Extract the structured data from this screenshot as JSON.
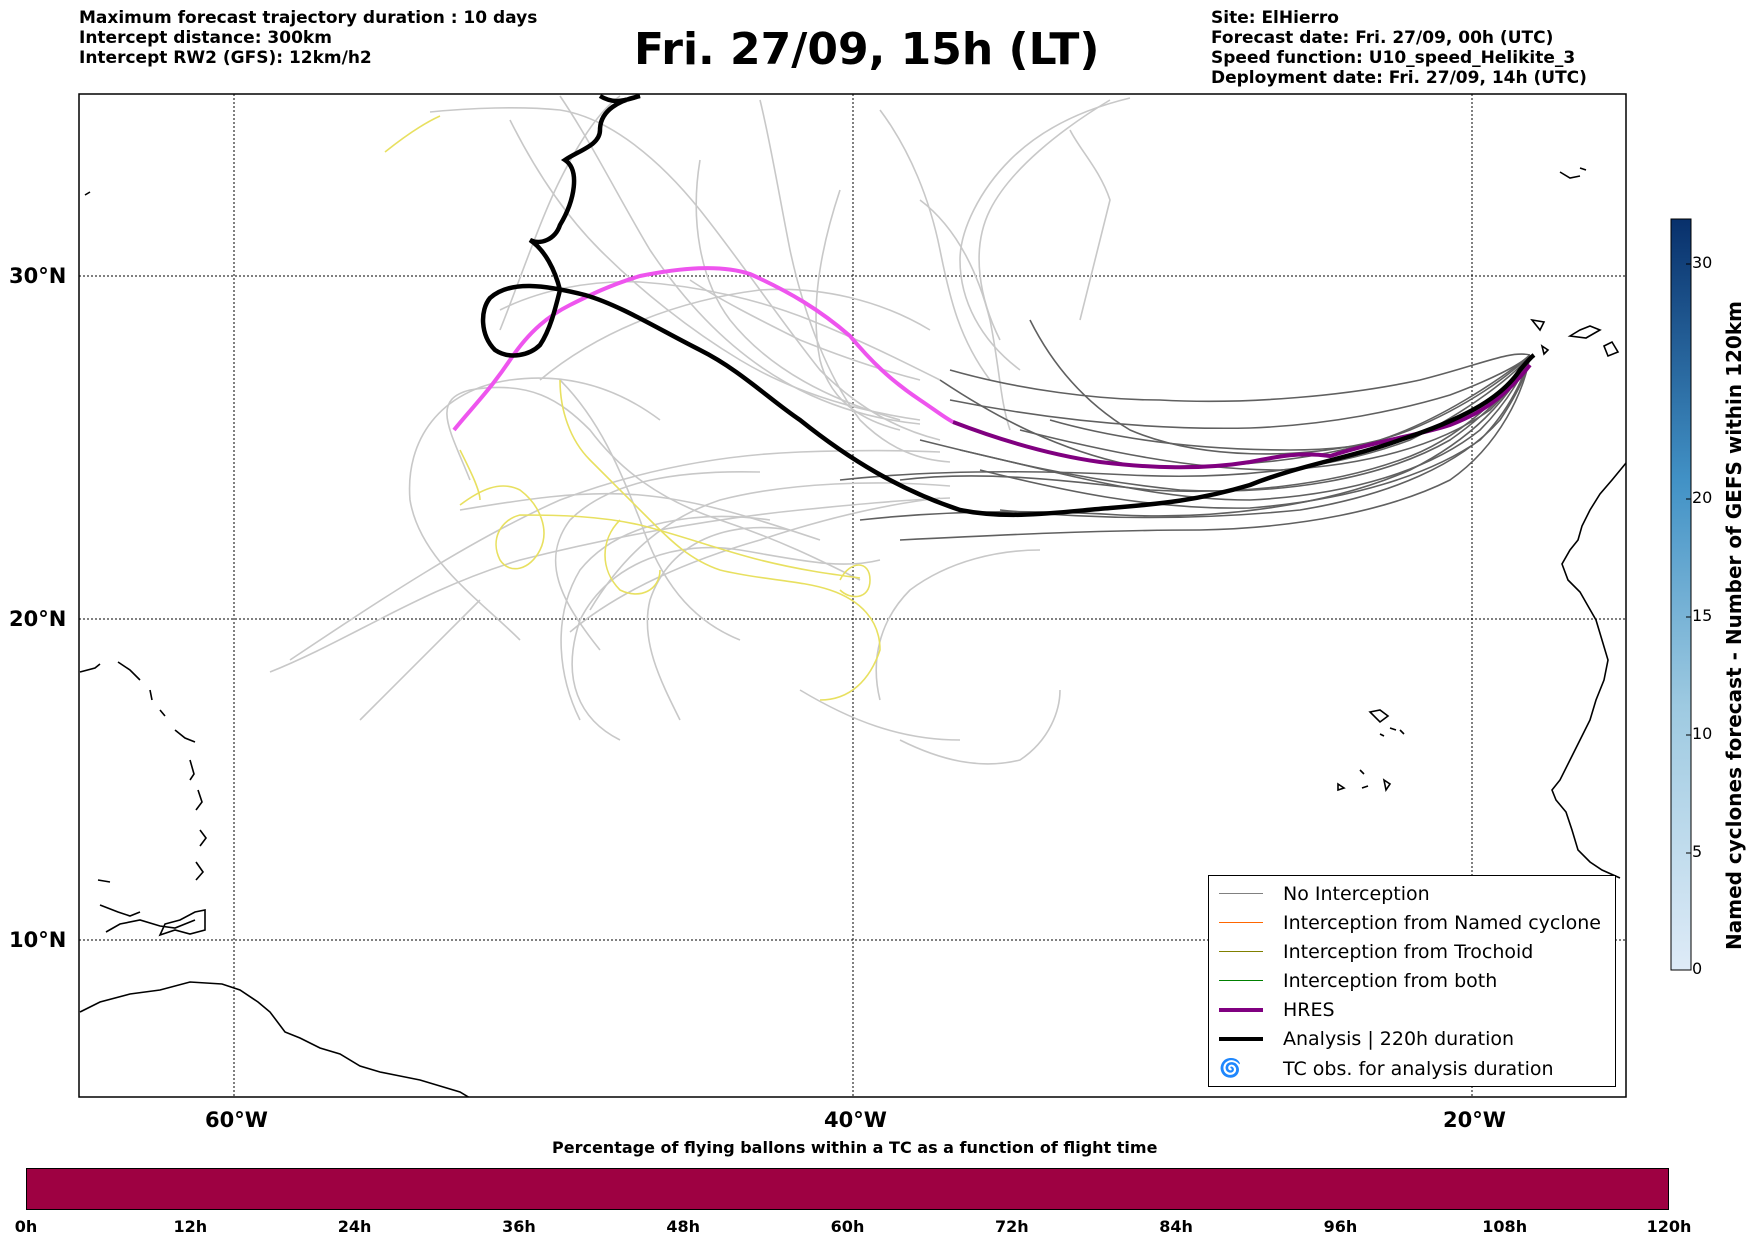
{
  "header_left": [
    "Maximum forecast trajectory duration : 10 days",
    "Intercept distance: 300km",
    "Intercept RW2 (GFS):  12km/h2"
  ],
  "title": "Fri. 27/09, 15h (LT)",
  "header_right": [
    "Site: ElHierro",
    "Forecast date: Fri. 27/09, 00h (UTC)",
    "Speed function: U10_speed_Helikite_3",
    "Deployment date: Fri. 27/09, 14h (UTC)"
  ],
  "map": {
    "lat_labels": [
      "30°N",
      "20°N",
      "10°N"
    ],
    "lon_labels": [
      "60°W",
      "40°W",
      "20°W"
    ],
    "grid": true
  },
  "legend": {
    "items": [
      {
        "label": "No Interception",
        "color": "#808080"
      },
      {
        "label": "Interception from Named cyclone",
        "color": "#ff6600"
      },
      {
        "label": "Interception from Trochoid",
        "color": "#808000"
      },
      {
        "label": "Interception from both",
        "color": "#008000"
      },
      {
        "label": "HRES",
        "color": "#800080"
      },
      {
        "label": "Analysis | 220h duration",
        "color": "#000000"
      },
      {
        "label": "TC obs. for analysis duration",
        "color": "#000000",
        "icon": "cyclone-symbols"
      }
    ]
  },
  "percentage_bar": {
    "title": "Percentage of flying ballons within a TC as a function of flight time",
    "tick_labels": [
      "0h",
      "12h",
      "24h",
      "36h",
      "48h",
      "60h",
      "72h",
      "84h",
      "96h",
      "108h",
      "120h"
    ],
    "color": "#9e0142"
  },
  "colorbar": {
    "title": "Named cyclones forecast - Number of GEFS within 120km",
    "ticks": [
      "0",
      "5",
      "10",
      "15",
      "20",
      "30"
    ]
  },
  "colors": {
    "hres": "#800080",
    "hres_early": "#ee55ee",
    "analysis": "#000000",
    "members_near": "#606060",
    "members_far": "#c8c8c8",
    "yellow_track": "#e8e060"
  }
}
